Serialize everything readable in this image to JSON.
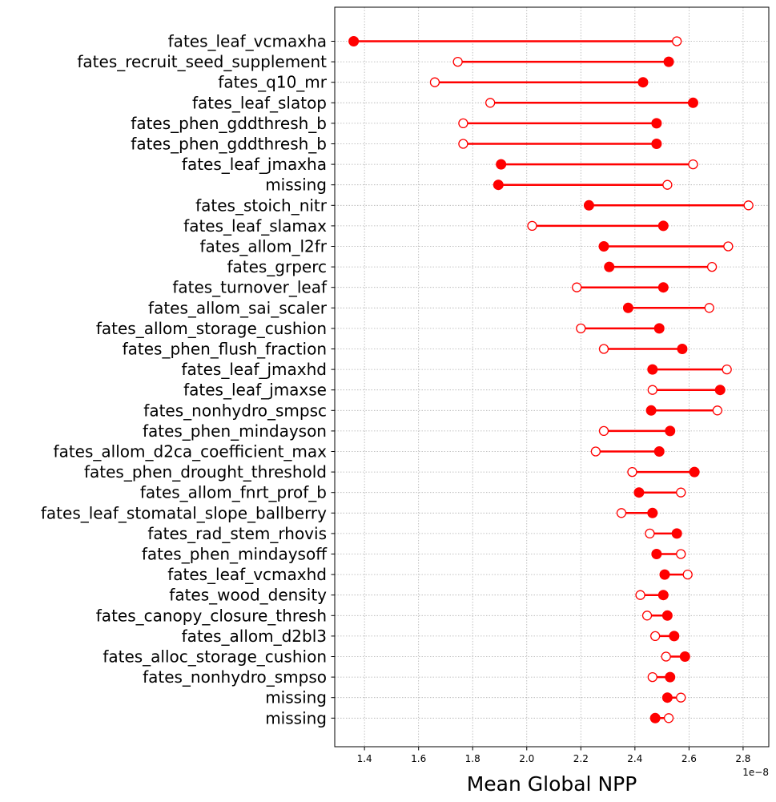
{
  "chart_data": {
    "type": "dumbbell",
    "xlabel": "Mean Global NPP",
    "x_offset_label": "1e−8",
    "xlim": [
      1.29,
      2.895
    ],
    "xticks": [
      1.4,
      1.6,
      1.8,
      2.0,
      2.2,
      2.4,
      2.6,
      2.8
    ],
    "xtick_labels": [
      "1.4",
      "1.6",
      "1.8",
      "2.0",
      "2.2",
      "2.4",
      "2.6",
      "2.8"
    ],
    "grid": true,
    "line_color": "#ff0000",
    "marker_color": "#ff0000",
    "markers": {
      "filled": "filled circle",
      "hollow": "open circle"
    },
    "categories": [
      "fates_leaf_vcmaxha",
      "fates_recruit_seed_supplement",
      "fates_q10_mr",
      "fates_leaf_slatop",
      "fates_phen_gddthresh_b",
      "fates_phen_gddthresh_b",
      "fates_leaf_jmaxha",
      "missing",
      "fates_stoich_nitr",
      "fates_leaf_slamax",
      "fates_allom_l2fr",
      "fates_grperc",
      "fates_turnover_leaf",
      "fates_allom_sai_scaler",
      "fates_allom_storage_cushion",
      "fates_phen_flush_fraction",
      "fates_leaf_jmaxhd",
      "fates_leaf_jmaxse",
      "fates_nonhydro_smpsc",
      "fates_phen_mindayson",
      "fates_allom_d2ca_coefficient_max",
      "fates_phen_drought_threshold",
      "fates_allom_fnrt_prof_b",
      "fates_leaf_stomatal_slope_ballberry",
      "fates_rad_stem_rhovis",
      "fates_phen_mindaysoff",
      "fates_leaf_vcmaxhd",
      "fates_wood_density",
      "fates_canopy_closure_thresh",
      "fates_allom_d2bl3",
      "fates_alloc_storage_cushion",
      "fates_nonhydro_smpso",
      "missing",
      "missing"
    ],
    "series": [
      {
        "marker": "filled",
        "values": [
          1.36,
          2.525,
          2.43,
          2.615,
          2.48,
          2.48,
          1.905,
          1.895,
          2.23,
          2.505,
          2.285,
          2.305,
          2.505,
          2.375,
          2.49,
          2.575,
          2.465,
          2.715,
          2.46,
          2.53,
          2.49,
          2.62,
          2.415,
          2.465,
          2.555,
          2.48,
          2.51,
          2.505,
          2.52,
          2.545,
          2.585,
          2.53,
          2.52,
          2.475
        ]
      },
      {
        "marker": "hollow",
        "values": [
          2.555,
          1.745,
          1.66,
          1.865,
          1.765,
          1.765,
          2.615,
          2.52,
          2.82,
          2.02,
          2.745,
          2.685,
          2.185,
          2.675,
          2.2,
          2.285,
          2.74,
          2.465,
          2.705,
          2.285,
          2.255,
          2.39,
          2.57,
          2.35,
          2.455,
          2.57,
          2.595,
          2.42,
          2.445,
          2.475,
          2.515,
          2.465,
          2.57,
          2.525
        ]
      }
    ]
  }
}
